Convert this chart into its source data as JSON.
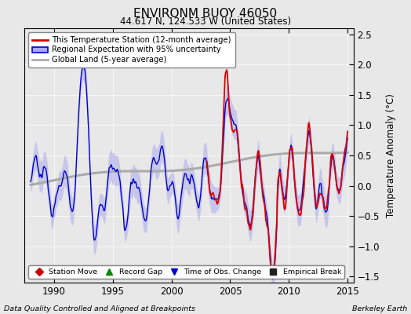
{
  "title": "ENVIRONM BUOY 46050",
  "subtitle": "44.617 N, 124.533 W (United States)",
  "ylabel": "Temperature Anomaly (°C)",
  "xlim": [
    1987.5,
    2015.5
  ],
  "ylim": [
    -1.6,
    2.6
  ],
  "yticks": [
    -1.5,
    -1.0,
    -0.5,
    0,
    0.5,
    1.0,
    1.5,
    2.0,
    2.5
  ],
  "xticks": [
    1990,
    1995,
    2000,
    2005,
    2010,
    2015
  ],
  "legend_entries": [
    "This Temperature Station (12-month average)",
    "Regional Expectation with 95% uncertainty",
    "Global Land (5-year average)"
  ],
  "footer_left": "Data Quality Controlled and Aligned at Breakpoints",
  "footer_right": "Berkeley Earth",
  "legend2_entries": [
    "Station Move",
    "Record Gap",
    "Time of Obs. Change",
    "Empirical Break"
  ],
  "legend2_colors": [
    "#cc0000",
    "#008800",
    "#0000cc",
    "#222222"
  ],
  "legend2_markers": [
    "D",
    "^",
    "v",
    "s"
  ],
  "red_color": "#dd0000",
  "blue_color": "#0000cc",
  "blue_fill_color": "#aaaaee",
  "gray_color": "#aaaaaa",
  "bg_color": "#e8e8e8"
}
